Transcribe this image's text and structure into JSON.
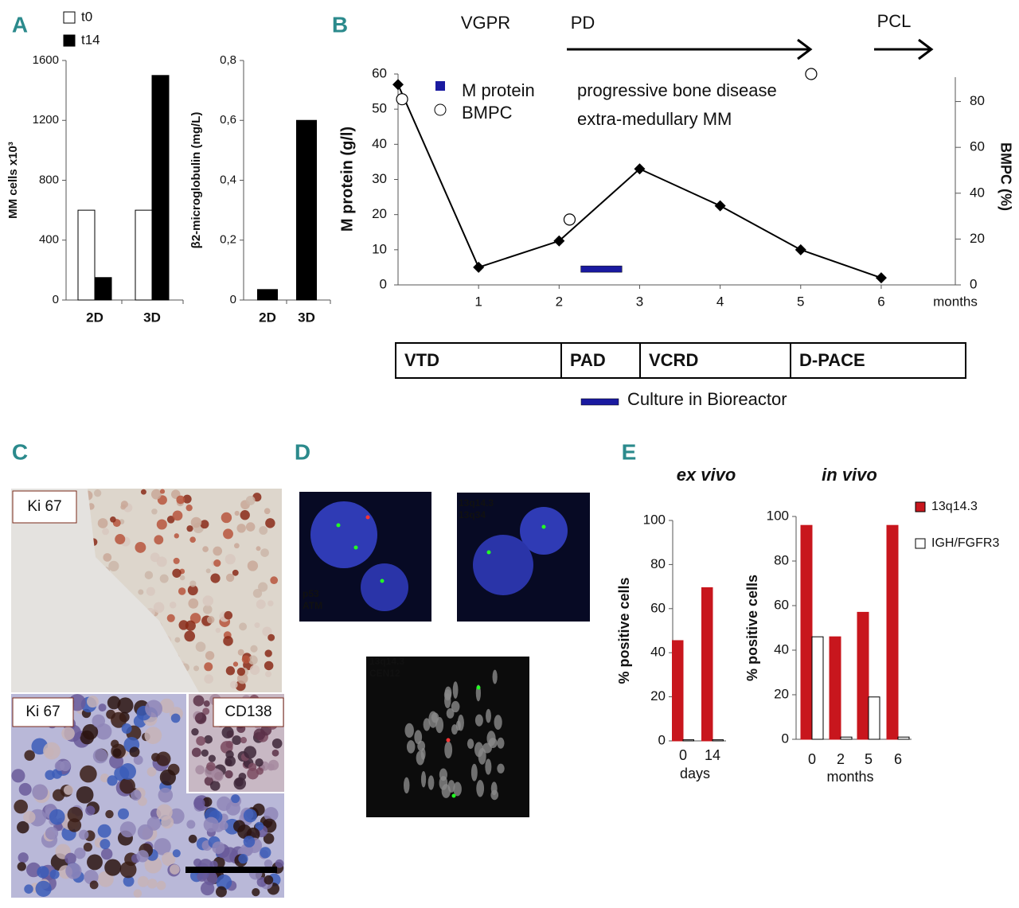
{
  "panel_labels": [
    "A",
    "B",
    "C",
    "D",
    "E"
  ],
  "chart_data": [
    {
      "type": "bar",
      "ylabel": "MM cells x10³",
      "categories": [
        "2D",
        "3D"
      ],
      "series": [
        {
          "name": "t0",
          "color": "#ffffff",
          "values": [
            600,
            600
          ]
        },
        {
          "name": "t14",
          "color": "#000000",
          "values": [
            150,
            1500
          ]
        }
      ],
      "ylim": [
        0,
        1600
      ],
      "yticks": [
        0,
        400,
        800,
        1200,
        1600
      ]
    },
    {
      "type": "bar",
      "ylabel": "β2-microglobulin (mg/L)",
      "categories": [
        "2D",
        "3D"
      ],
      "series": [
        {
          "color": "#000000",
          "values": [
            0.035,
            0.6
          ]
        }
      ],
      "ylim": [
        0,
        0.8
      ],
      "yticks": [
        0,
        {
          "value": 0.2,
          "label": "0,2"
        },
        {
          "value": 0.4,
          "label": "0,4"
        },
        {
          "value": 0.6,
          "label": "0,6"
        },
        {
          "value": 0.8,
          "label": "0,8"
        }
      ]
    },
    {
      "type": "line",
      "ylabel": "M protein (g/l)",
      "y2label": "BMPC (%)",
      "xlabel": "months",
      "series": [
        {
          "name": "M protein",
          "color": "#000000",
          "legend_color": "#1a1aa0",
          "marker": "diamond",
          "x": [
            0,
            1,
            2,
            3,
            4,
            5,
            6
          ],
          "values": [
            57,
            5,
            12.5,
            33,
            22.5,
            10,
            2
          ]
        },
        {
          "name": "BMPC",
          "color": "#000000",
          "marker": "circle",
          "axis": "y2",
          "x": [
            0.05,
            2.13,
            5.13
          ],
          "values": [
            81,
            28.5,
            92
          ]
        }
      ],
      "xlim": [
        0,
        6.92
      ],
      "xticks": [
        1,
        2,
        3,
        4,
        5,
        6
      ],
      "ylim": [
        0,
        60
      ],
      "yticks": [
        0,
        10,
        20,
        30,
        40,
        50,
        60
      ],
      "y2lim": [
        0,
        92
      ],
      "y2ticks": [
        0,
        20,
        40,
        60,
        80
      ],
      "culture": {
        "label": "Culture in Bioreactor",
        "x": [
          2.27,
          2.78
        ],
        "y": 4.5,
        "color": "#1a1aa0"
      },
      "annotations": [
        "VGPR",
        "PD",
        "PCL",
        "progressive bone disease",
        "extra-medullary MM"
      ],
      "treatments": [
        "VTD",
        "PAD",
        "VCRD",
        "D-PACE"
      ]
    },
    {
      "type": "bar",
      "title": "ex vivo",
      "ylabel": "% positive cells",
      "xlabel": "days",
      "categories": [
        "0",
        "14"
      ],
      "series": [
        {
          "color": "#c8161d",
          "values": [
            45.5,
            69.5
          ]
        },
        {
          "color": "#ffffff",
          "values": [
            0.5,
            0.5
          ]
        }
      ],
      "ylim": [
        0,
        100
      ],
      "yticks": [
        0,
        20,
        40,
        60,
        80,
        100
      ]
    },
    {
      "type": "bar",
      "title": "in vivo",
      "ylabel": "% positive cells",
      "xlabel": "months",
      "categories": [
        "0",
        "2",
        "5",
        "6"
      ],
      "series": [
        {
          "name": "13q14.3",
          "color": "#c8161d",
          "values": [
            96,
            46,
            57,
            96
          ]
        },
        {
          "name": "IGH/FGFR3",
          "color": "#ffffff",
          "values": [
            46,
            1,
            19,
            1
          ]
        }
      ],
      "ylim": [
        0,
        100
      ],
      "yticks": [
        0,
        20,
        40,
        60,
        80,
        100
      ]
    }
  ],
  "micrographs": [
    "Ki 67",
    "Ki 67",
    "CD138"
  ],
  "fish_images": [
    [
      "p53",
      "ATM"
    ],
    [
      "13q14.3",
      "13q34"
    ],
    [
      "13q14.3",
      "CEN12"
    ]
  ]
}
